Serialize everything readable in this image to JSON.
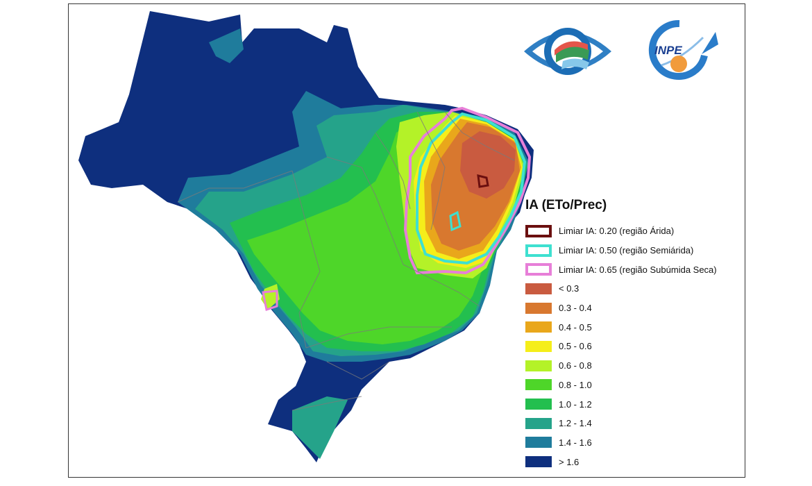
{
  "legend": {
    "title": "IA (ETo/Prec)",
    "thresholds": [
      {
        "label": "Limiar IA: 0.20 (região Árida)",
        "color": "#6b0f0f"
      },
      {
        "label": "Limiar IA: 0.50 (região Semiárida)",
        "color": "#3ee0d0"
      },
      {
        "label": "Limiar IA: 0.65 (região Subúmida Seca)",
        "color": "#e77fd8"
      }
    ],
    "classes": [
      {
        "label": "< 0.3",
        "color": "#c95b40"
      },
      {
        "label": "0.3 - 0.4",
        "color": "#d8782f"
      },
      {
        "label": "0.4 - 0.5",
        "color": "#e9a71b"
      },
      {
        "label": "0.5 - 0.6",
        "color": "#f5ee1a"
      },
      {
        "label": "0.6 - 0.8",
        "color": "#b4f228"
      },
      {
        "label": "0.8 - 1.0",
        "color": "#4ed629"
      },
      {
        "label": "1.0 - 1.2",
        "color": "#23bf4f"
      },
      {
        "label": "1.2 - 1.4",
        "color": "#25a38a"
      },
      {
        "label": "1.4 - 1.6",
        "color": "#1f7c9c"
      },
      {
        "label": "> 1.6",
        "color": "#0e2f7e"
      }
    ]
  },
  "logos": {
    "cemaden": {
      "name": "eye-logo"
    },
    "inpe": {
      "text": "INPE"
    }
  }
}
